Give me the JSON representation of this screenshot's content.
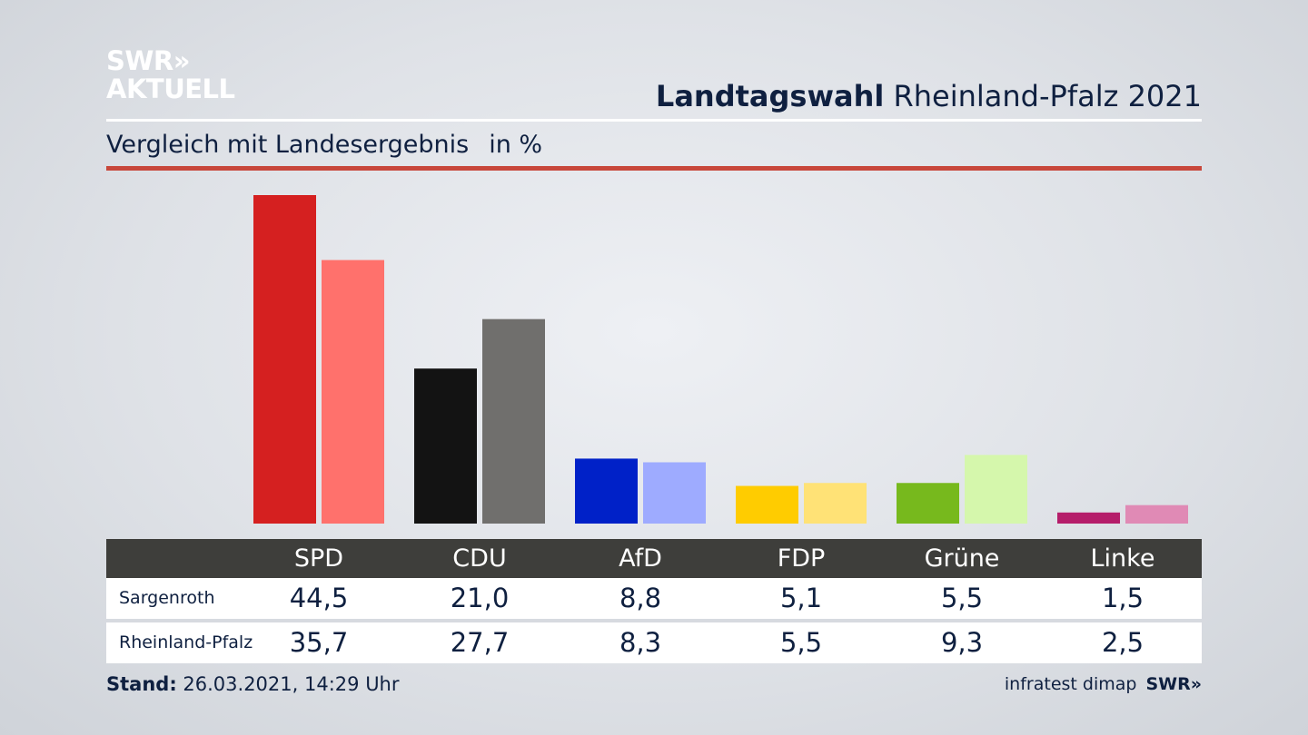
{
  "logo": {
    "line1": "SWR»",
    "line2": "AKTUELL"
  },
  "header": {
    "title_bold": "Landtagswahl",
    "title_rest": "Rheinland-Pfalz 2021"
  },
  "subtitle": {
    "text": "Vergleich mit Landesergebnis",
    "unit": "in %"
  },
  "colors": {
    "accent_line": "#c8473b"
  },
  "chart_data": {
    "type": "bar",
    "title": "Vergleich mit Landesergebnis",
    "ylabel": "in %",
    "categories": [
      "SPD",
      "CDU",
      "AfD",
      "FDP",
      "Grüne",
      "Linke"
    ],
    "series": [
      {
        "name": "Sargenroth",
        "values": [
          44.5,
          21.0,
          8.8,
          5.1,
          5.5,
          1.5
        ],
        "labels": [
          "44,5",
          "21,0",
          "8,8",
          "5,1",
          "5,5",
          "1,5"
        ],
        "colors": [
          "#d52020",
          "#131313",
          "#0021c8",
          "#ffcc00",
          "#77b91d",
          "#b51d6a"
        ]
      },
      {
        "name": "Rheinland-Pfalz",
        "values": [
          35.7,
          27.7,
          8.3,
          5.5,
          9.3,
          2.5
        ],
        "labels": [
          "35,7",
          "27,7",
          "8,3",
          "5,5",
          "9,3",
          "2,5"
        ],
        "colors": [
          "#ff716c",
          "#706f6d",
          "#9eabff",
          "#ffe276",
          "#d5f7ac",
          "#e08ab5"
        ]
      }
    ],
    "ylim": [
      0,
      44.5
    ],
    "grid": false,
    "legend": "none"
  },
  "footer": {
    "stand_label": "Stand:",
    "stand_value": "26.03.2021, 14:29 Uhr",
    "source": "infratest dimap",
    "brand": "SWR»"
  }
}
